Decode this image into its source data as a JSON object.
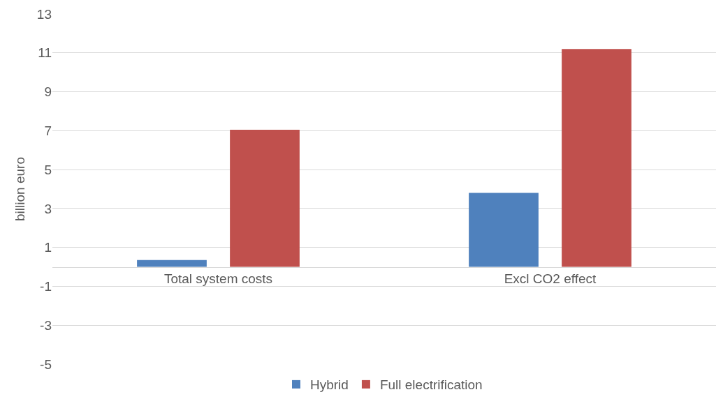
{
  "chart_data": {
    "type": "bar",
    "ylabel": "billion euro",
    "categories": [
      "Total system costs",
      "Excl CO2 effect"
    ],
    "series": [
      {
        "name": "Hybrid",
        "color": "#4f81bd",
        "values": [
          0.35,
          3.8
        ]
      },
      {
        "name": "Full electrification",
        "color": "#c0504d",
        "values": [
          7.05,
          11.2
        ]
      }
    ],
    "ylim": [
      -5,
      13
    ],
    "yticks": [
      -5,
      -3,
      -1,
      1,
      3,
      5,
      7,
      9,
      11,
      13
    ],
    "grid": "y",
    "legend": "bottom"
  }
}
